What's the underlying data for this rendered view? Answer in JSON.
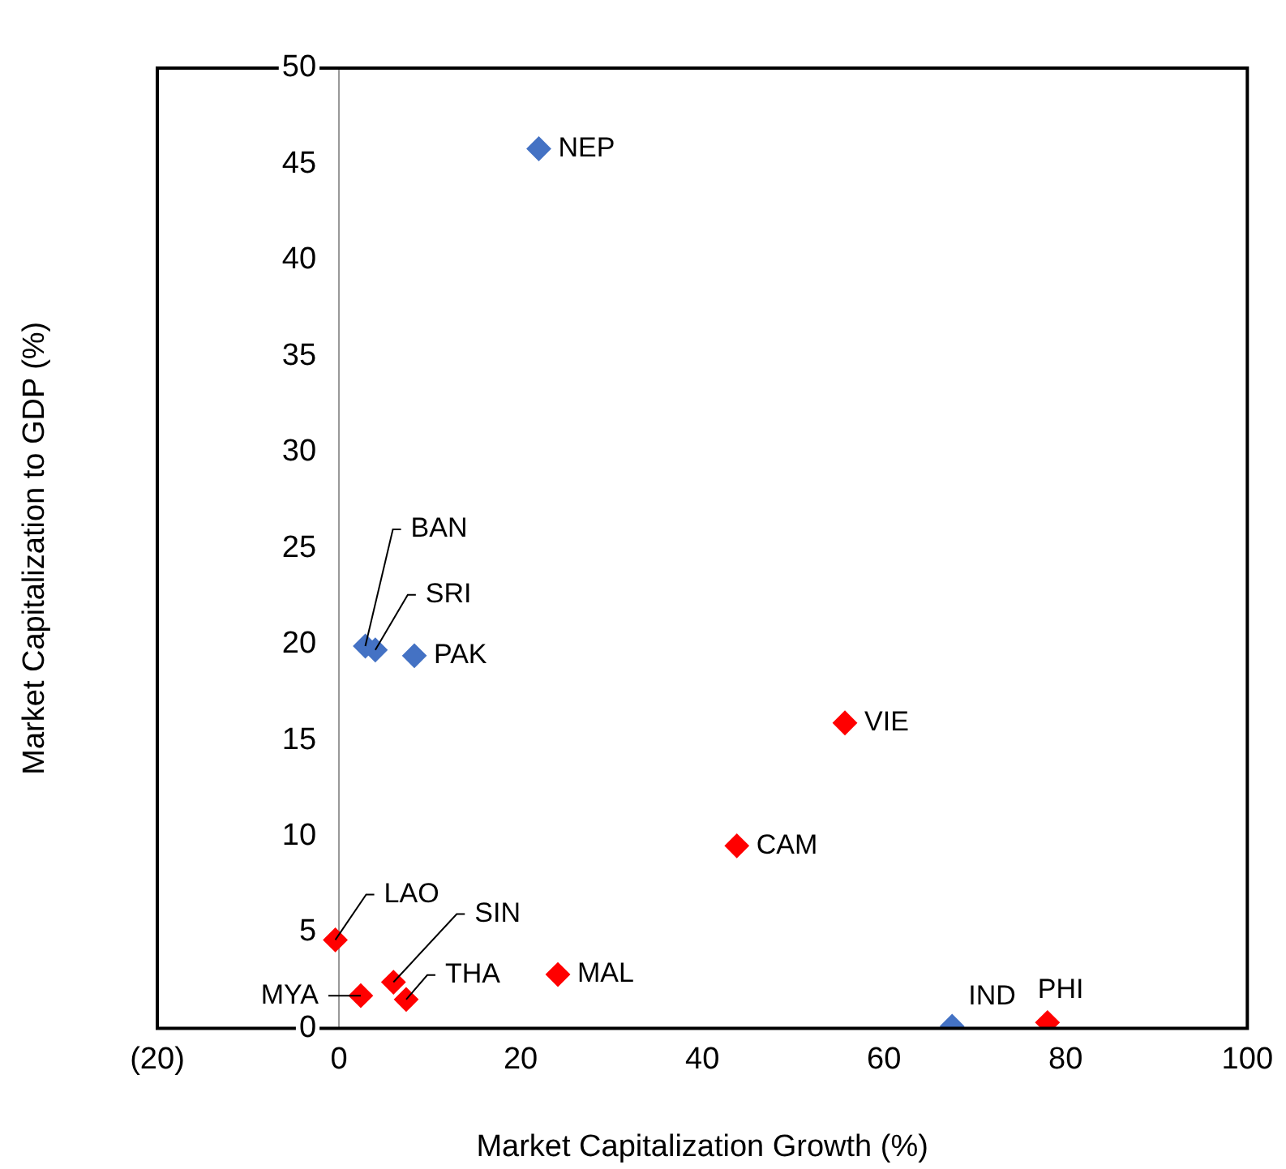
{
  "chart_data": {
    "type": "scatter",
    "xlabel": "Market Capitalization Growth (%)",
    "ylabel": "Market Capitalization to GDP (%)",
    "series": [
      {
        "color": "#4472c4",
        "x": [
          22,
          2.9,
          4.0,
          8.3,
          67.5
        ],
        "values": [
          45.8,
          19.9,
          19.7,
          19.4,
          0.1
        ]
      },
      {
        "color": "#ff0000",
        "x": [
          55.7,
          43.8,
          -0.4,
          6.0,
          7.4,
          2.4,
          24.1,
          78
        ],
        "values": [
          15.9,
          9.5,
          4.6,
          2.4,
          1.5,
          1.7,
          2.8,
          0.3
        ]
      }
    ],
    "xlim": [
      -20,
      100
    ],
    "xticks": [
      {
        "value": -20,
        "label": "(20)"
      },
      0,
      20,
      40,
      60,
      80,
      100
    ],
    "ylim": [
      0,
      50
    ],
    "yticks": [
      0,
      5,
      10,
      15,
      20,
      25,
      30,
      35,
      40,
      45,
      50
    ],
    "grid": false,
    "legend": false,
    "marker": "diamond",
    "annotations": [
      {
        "text": "NEP",
        "x": 22,
        "y": 45.8
      },
      {
        "text": "BAN",
        "x": 2.9,
        "y": 19.9
      },
      {
        "text": "SRI",
        "x": 4.0,
        "y": 19.7
      },
      {
        "text": "PAK",
        "x": 8.3,
        "y": 19.4
      },
      {
        "text": "VIE",
        "x": 55.7,
        "y": 15.9
      },
      {
        "text": "CAM",
        "x": 43.8,
        "y": 9.5
      },
      {
        "text": "LAO",
        "x": -0.4,
        "y": 4.6
      },
      {
        "text": "SIN",
        "x": 6.0,
        "y": 2.4
      },
      {
        "text": "THA",
        "x": 7.4,
        "y": 1.5
      },
      {
        "text": "MYA",
        "x": 2.4,
        "y": 1.7
      },
      {
        "text": "MAL",
        "x": 24.1,
        "y": 2.8
      },
      {
        "text": "IND",
        "x": 67.5,
        "y": 0.1
      },
      {
        "text": "PHI",
        "x": 78,
        "y": 0.3
      }
    ]
  }
}
